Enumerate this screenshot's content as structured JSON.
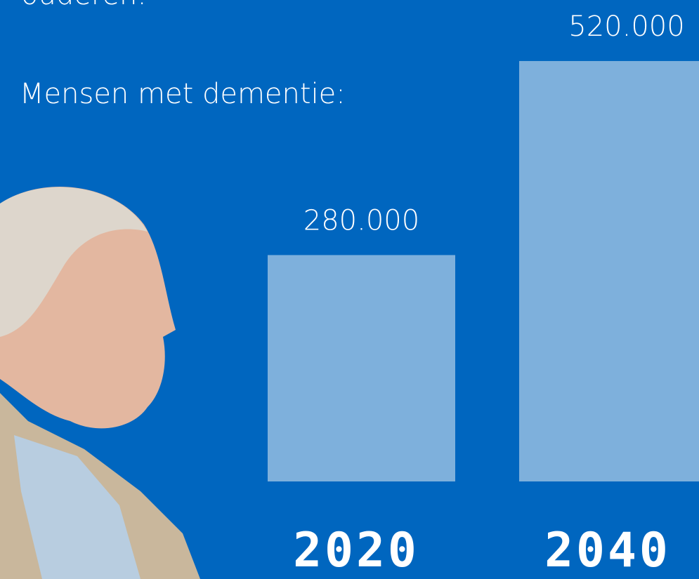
{
  "chart_data": {
    "type": "bar",
    "title": "ouderen:",
    "subtitle": "Mensen met dementie:",
    "categories": [
      "2020",
      "2040"
    ],
    "values": [
      280000,
      520000
    ],
    "value_labels": [
      "280.000",
      "520.000"
    ],
    "color": "#7eb0dc"
  }
}
